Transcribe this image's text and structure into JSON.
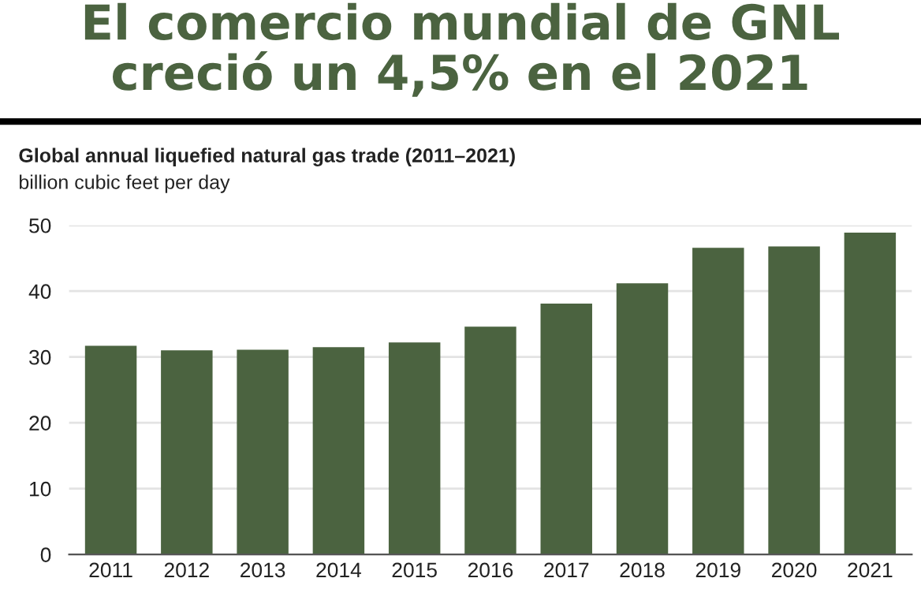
{
  "chart_data": {
    "type": "bar",
    "title": "El comercio mundial de GNL\ncreció un 4,5% en el 2021",
    "subtitle": "Global annual liquefied natural gas trade (2011–2021)",
    "ylabel": "billion cubic feet per day",
    "categories": [
      "2011",
      "2012",
      "2013",
      "2014",
      "2015",
      "2016",
      "2017",
      "2018",
      "2019",
      "2020",
      "2021"
    ],
    "values": [
      31.7,
      31.0,
      31.1,
      31.5,
      32.2,
      34.6,
      38.1,
      41.2,
      46.6,
      46.8,
      48.9
    ],
    "color": "#4b6340",
    "ylim": [
      0,
      50
    ],
    "yticks": [
      0,
      10,
      20,
      30,
      40,
      50
    ],
    "grid": "y",
    "legend": false
  }
}
